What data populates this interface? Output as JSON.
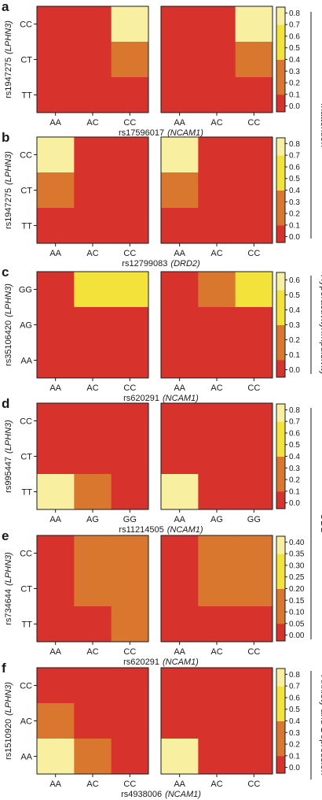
{
  "colors": {
    "red": "#d7322c",
    "orange": "#d9772f",
    "yellow": "#f3e23a",
    "pale": "#f8f0a0",
    "frame": "#1a1a1a"
  },
  "colorbar_colors": [
    "#d7322c",
    "#d9772f",
    "#d9772f",
    "#f3e23a",
    "#f3e23a",
    "#f8f0a0"
  ],
  "side_labels": [
    "Inattention",
    "Hyperactivity/Impulsivity",
    "ODD",
    "Anxiety and Depression"
  ],
  "chart_data": [
    {
      "panel": "a",
      "type": "heatmap",
      "xlabel": "rs17596017",
      "xgene": "(NCAM1)",
      "ylabel": "rs1947275",
      "ygene": "(LPHN3)",
      "x_categories": [
        "AA",
        "AC",
        "CC"
      ],
      "y_categories": [
        "CC",
        "CT",
        "TT"
      ],
      "left_values": [
        [
          0.0,
          0.0,
          0.75
        ],
        [
          0.0,
          0.0,
          0.3
        ],
        [
          0.0,
          0.0,
          0.0
        ]
      ],
      "right_values": [
        [
          0.0,
          0.0,
          0.75
        ],
        [
          0.0,
          0.0,
          0.3
        ],
        [
          0.0,
          0.0,
          0.0
        ]
      ],
      "colorbar_ticks": [
        "0.8",
        "0.7",
        "0.6",
        "0.5",
        "0.4",
        "0.3",
        "0.2",
        "0.1",
        "0.0"
      ],
      "colorbar_range": [
        -0.05,
        0.85
      ]
    },
    {
      "panel": "b",
      "type": "heatmap",
      "xlabel": "rs12799083",
      "xgene": "(DRD2)",
      "ylabel": "rs1947275",
      "ygene": "(LPHN3)",
      "x_categories": [
        "AA",
        "AC",
        "CC"
      ],
      "y_categories": [
        "CC",
        "CT",
        "TT"
      ],
      "left_values": [
        [
          0.75,
          0.0,
          0.0
        ],
        [
          0.3,
          0.0,
          0.0
        ],
        [
          0.0,
          0.0,
          0.0
        ]
      ],
      "right_values": [
        [
          0.75,
          0.0,
          0.0
        ],
        [
          0.3,
          0.0,
          0.0
        ],
        [
          0.0,
          0.0,
          0.0
        ]
      ],
      "colorbar_ticks": [
        "0.8",
        "0.7",
        "0.6",
        "0.5",
        "0.4",
        "0.3",
        "0.2",
        "0.1",
        "0.0"
      ],
      "colorbar_range": [
        -0.05,
        0.85
      ]
    },
    {
      "panel": "c",
      "type": "heatmap",
      "xlabel": "rs620291",
      "xgene": "(NCAM1)",
      "ylabel": "rs35106420",
      "ygene": "(LPHN3)",
      "x_categories": [
        "AA",
        "AC",
        "CC"
      ],
      "y_categories": [
        "GG",
        "AG",
        "AA"
      ],
      "left_values": [
        [
          0.0,
          0.5,
          0.6
        ],
        [
          0.0,
          0.0,
          0.0
        ],
        [
          0.0,
          0.0,
          0.0
        ]
      ],
      "right_values": [
        [
          0.0,
          0.25,
          0.6
        ],
        [
          0.0,
          0.0,
          0.0
        ],
        [
          0.0,
          0.0,
          0.0
        ]
      ],
      "colorbar_ticks": [
        "0.6",
        "0.5",
        "0.4",
        "0.3",
        "0.2",
        "0.1",
        "0.0"
      ],
      "colorbar_range": [
        -0.05,
        0.65
      ]
    },
    {
      "panel": "d",
      "type": "heatmap",
      "xlabel": "rs11214505",
      "xgene": "(NCAM1)",
      "ylabel": "rs995447",
      "ygene": "(LPHN3)",
      "x_categories": [
        "AA",
        "AG",
        "GG"
      ],
      "y_categories": [
        "CC",
        "CT",
        "TT"
      ],
      "left_values": [
        [
          0.0,
          0.0,
          0.0
        ],
        [
          0.0,
          0.0,
          0.0
        ],
        [
          0.75,
          0.3,
          0.0
        ]
      ],
      "right_values": [
        [
          0.0,
          0.0,
          0.0
        ],
        [
          0.0,
          0.0,
          0.0
        ],
        [
          0.75,
          0.0,
          0.0
        ]
      ],
      "colorbar_ticks": [
        "0.8",
        "0.7",
        "0.6",
        "0.5",
        "0.4",
        "0.3",
        "0.2",
        "0.1",
        "0.0"
      ],
      "colorbar_range": [
        -0.05,
        0.85
      ]
    },
    {
      "panel": "e",
      "type": "heatmap",
      "xlabel": "rs620291",
      "xgene": "(NCAM1)",
      "ylabel": "rs734644",
      "ygene": "(LPHN3)",
      "x_categories": [
        "AA",
        "AC",
        "CC"
      ],
      "y_categories": [
        "CC",
        "CT",
        "TT"
      ],
      "left_values": [
        [
          0.0,
          0.15,
          0.4
        ],
        [
          0.0,
          0.15,
          0.28
        ],
        [
          0.0,
          0.0,
          0.15
        ]
      ],
      "right_values": [
        [
          0.0,
          0.15,
          0.4
        ],
        [
          0.0,
          0.15,
          0.28
        ],
        [
          0.0,
          0.0,
          0.0
        ]
      ],
      "colorbar_ticks": [
        "0.40",
        "0.35",
        "0.30",
        "0.25",
        "0.20",
        "0.15",
        "0.10",
        "0.05",
        "0.00"
      ],
      "colorbar_range": [
        -0.025,
        0.425
      ]
    },
    {
      "panel": "f",
      "type": "heatmap",
      "xlabel": "rs4938006",
      "xgene": "(NCAM1)",
      "ylabel": "rs1510920",
      "ygene": "(LPHN3)",
      "x_categories": [
        "AA",
        "AC",
        "CC"
      ],
      "y_categories": [
        "CC",
        "AC",
        "AA"
      ],
      "left_values": [
        [
          0.0,
          0.0,
          0.0
        ],
        [
          0.3,
          0.0,
          0.0
        ],
        [
          0.75,
          0.3,
          0.0
        ]
      ],
      "right_values": [
        [
          0.0,
          0.0,
          0.0
        ],
        [
          0.0,
          0.0,
          0.0
        ],
        [
          0.75,
          0.0,
          0.0
        ]
      ],
      "colorbar_ticks": [
        "0.8",
        "0.7",
        "0.6",
        "0.5",
        "0.4",
        "0.3",
        "0.2",
        "0.1",
        "0.0"
      ],
      "colorbar_range": [
        -0.05,
        0.85
      ]
    }
  ]
}
